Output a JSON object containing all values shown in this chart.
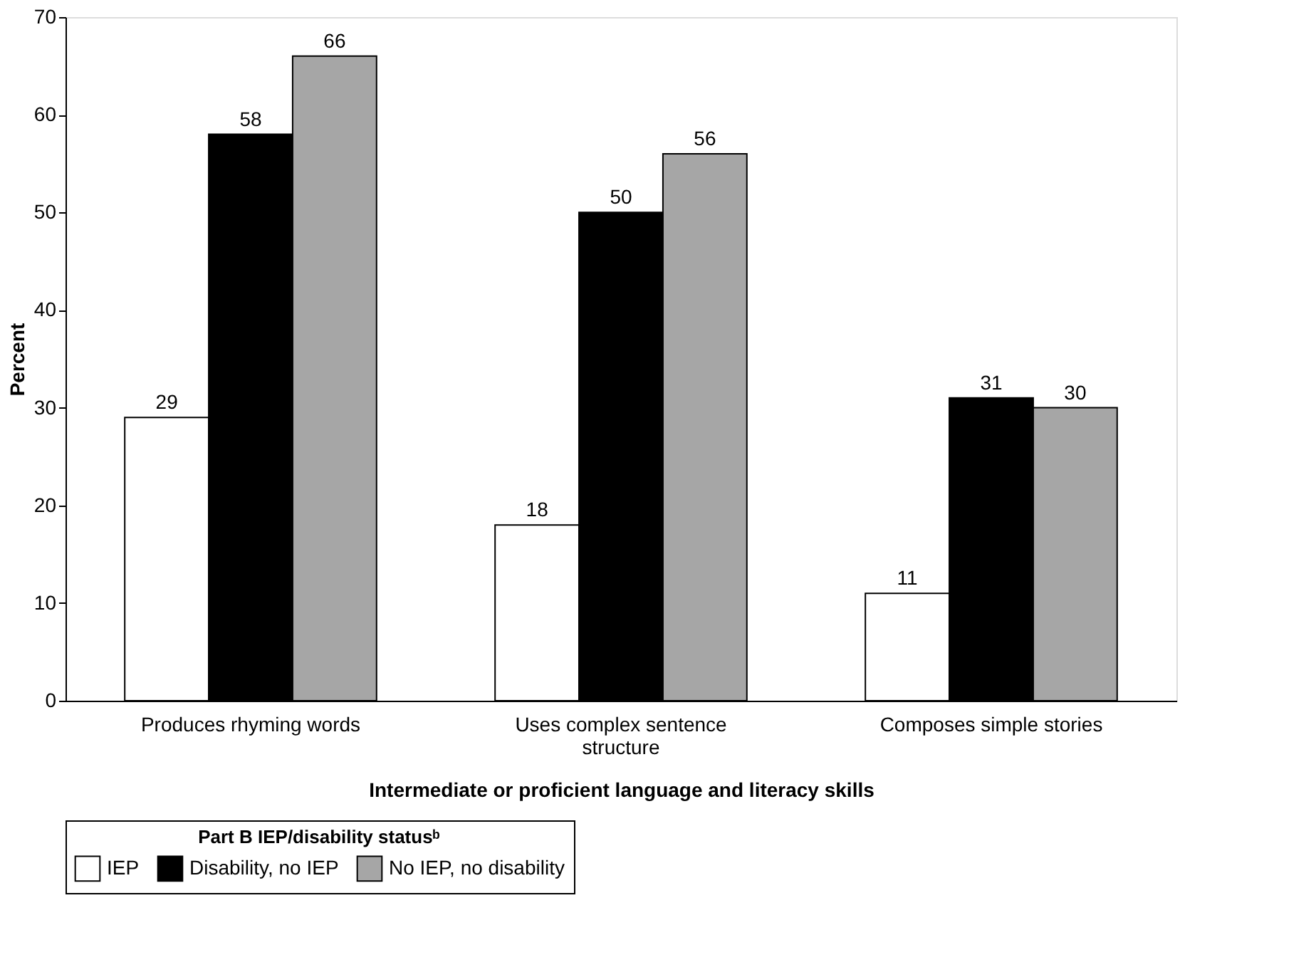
{
  "chart_data": {
    "type": "bar",
    "xlabel": "Intermediate or proficient language and literacy skills",
    "ylabel": "Percent",
    "legend_title": "Part B IEP/disability statusᵇ",
    "categories": [
      "Produces rhyming words",
      "Uses complex sentence structure",
      "Composes simple stories"
    ],
    "series": [
      {
        "name": "IEP",
        "color": "#ffffff",
        "values": [
          29,
          18,
          11
        ]
      },
      {
        "name": "Disability, no IEP",
        "color": "#000000",
        "values": [
          58,
          50,
          31
        ]
      },
      {
        "name": "No IEP, no disability",
        "color": "#a6a6a6",
        "values": [
          66,
          56,
          30
        ]
      }
    ],
    "ylim": [
      0,
      70
    ],
    "yticks": [
      0,
      10,
      20,
      30,
      40,
      50,
      60,
      70
    ],
    "data_labels": true,
    "grid": false,
    "legend": "bottom"
  }
}
